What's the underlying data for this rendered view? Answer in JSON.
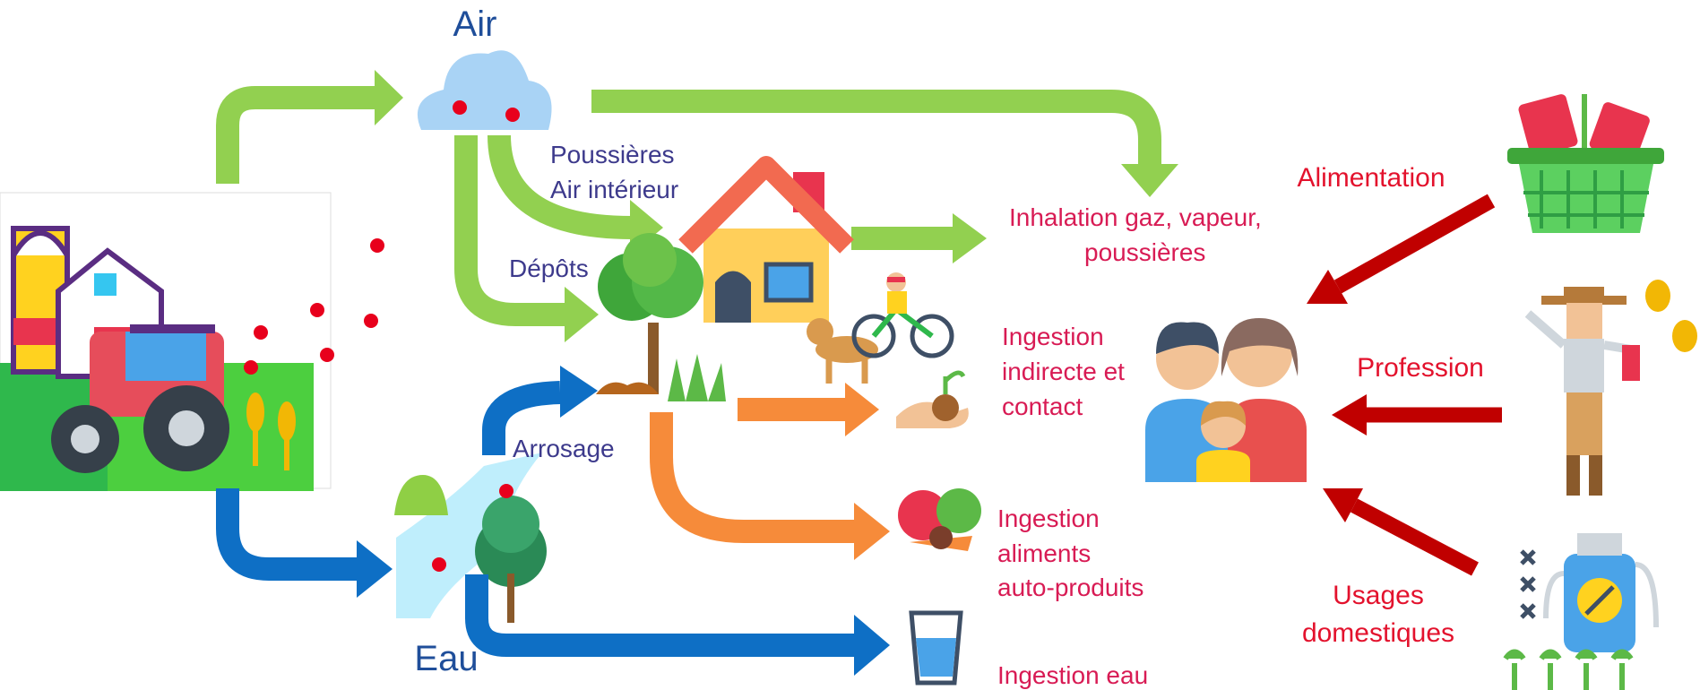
{
  "air": "Air",
  "eau": "Eau",
  "pathways": {
    "poussieres": [
      "Poussières",
      "Air intérieur"
    ],
    "depots": "Dépôts",
    "arrosage": "Arrosage"
  },
  "exposures": [
    [
      "Inhalation gaz, vapeur,",
      "poussières"
    ],
    [
      "Ingestion",
      "indirecte et",
      "contact"
    ],
    [
      "Ingestion",
      "aliments",
      "auto-produits"
    ],
    [
      "Ingestion eau"
    ]
  ],
  "sources": [
    [
      "Alimentation"
    ],
    [
      "Profession"
    ],
    [
      "Usages",
      "domestiques"
    ]
  ]
}
